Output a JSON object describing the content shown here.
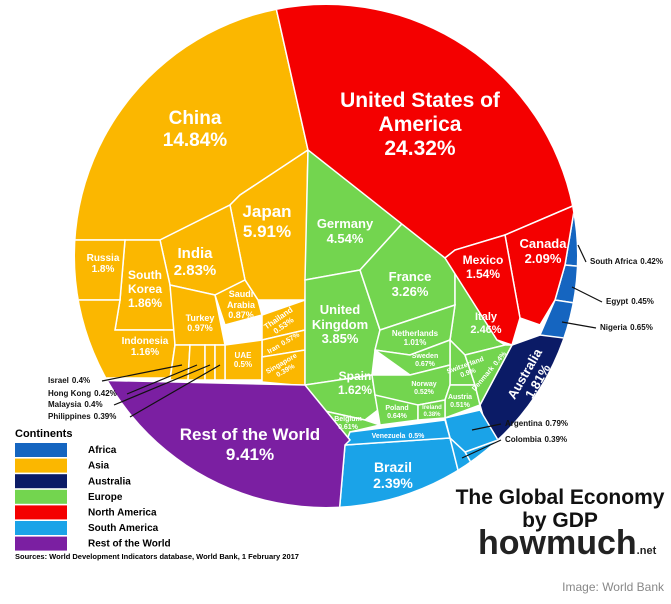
{
  "chart_data": {
    "type": "voronoi-treemap",
    "title": "The Global Economy by GDP",
    "brand": "howmuch",
    "brand_suffix": ".net",
    "legend_title": "Continents",
    "source": "Sources: World Development Indicators database, World Bank, 1 February 2017",
    "credit": "Image: World Bank",
    "series": [
      {
        "name": "Africa",
        "color": "#1565c0",
        "categories": [
          "South Africa",
          "Egypt",
          "Nigeria"
        ],
        "values": [
          0.42,
          0.45,
          0.65
        ],
        "value_labels": [
          "0.42%",
          "0.45%",
          "0.65%"
        ]
      },
      {
        "name": "Asia",
        "color": "#fbb700",
        "categories": [
          "China",
          "Japan",
          "India",
          "South Korea",
          "Russia",
          "Indonesia",
          "Turkey",
          "Saudi Arabia",
          "Thailand",
          "Iran",
          "UAE",
          "Singapore",
          "Israel",
          "Hong Kong",
          "Malaysia",
          "Philippines"
        ],
        "values": [
          14.84,
          5.91,
          2.83,
          1.86,
          1.8,
          1.16,
          0.97,
          0.87,
          0.53,
          0.57,
          0.5,
          0.39,
          0.4,
          0.42,
          0.4,
          0.39
        ],
        "value_labels": [
          "14.84%",
          "5.91%",
          "2.83%",
          "1.86%",
          "1.8%",
          "1.16%",
          "0.97%",
          "0.87%",
          "0.53%",
          "0.57%",
          "0.5%",
          "0.39%",
          "0.4%",
          "0.42%",
          "0.4%",
          "0.39%"
        ]
      },
      {
        "name": "Australia",
        "color": "#0b1b66",
        "categories": [
          "Australia"
        ],
        "values": [
          1.81
        ],
        "value_labels": [
          "1.81%"
        ]
      },
      {
        "name": "Europe",
        "color": "#73d54f",
        "categories": [
          "Germany",
          "United Kingdom",
          "France",
          "Italy",
          "Spain",
          "Netherlands",
          "Switzerland",
          "Sweden",
          "Poland",
          "Belgium",
          "Norway",
          "Austria",
          "Denmark",
          "Ireland"
        ],
        "values": [
          4.54,
          3.85,
          3.26,
          2.46,
          1.62,
          1.01,
          0.9,
          0.67,
          0.64,
          0.61,
          0.52,
          0.51,
          0.4,
          0.38
        ],
        "value_labels": [
          "4.54%",
          "3.85%",
          "3.26%",
          "2.46%",
          "1.62%",
          "1.01%",
          "0.9%",
          "0.67%",
          "0.64%",
          "0.61%",
          "0.52%",
          "0.51%",
          "0.4%",
          "0.38%"
        ]
      },
      {
        "name": "North America",
        "color": "#f40000",
        "categories": [
          "United States of America",
          "Canada",
          "Mexico"
        ],
        "values": [
          24.32,
          2.09,
          1.54
        ],
        "value_labels": [
          "24.32%",
          "2.09%",
          "1.54%"
        ]
      },
      {
        "name": "South America",
        "color": "#1aa3e8",
        "categories": [
          "Brazil",
          "Argentina",
          "Venezuela",
          "Colombia"
        ],
        "values": [
          2.39,
          0.79,
          0.5,
          0.39
        ],
        "value_labels": [
          "2.39%",
          "0.79%",
          "0.5%",
          "0.39%"
        ]
      },
      {
        "name": "Rest of the World",
        "color": "#7b1fa2",
        "categories": [
          "Rest of the World"
        ],
        "values": [
          9.41
        ],
        "value_labels": [
          "9.41%"
        ]
      }
    ]
  }
}
